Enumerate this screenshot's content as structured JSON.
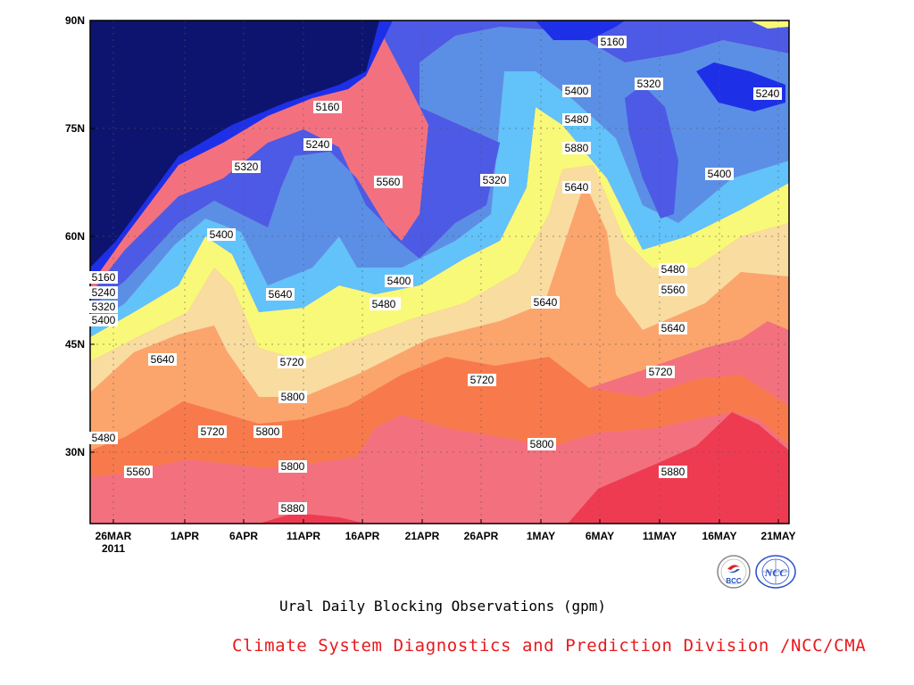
{
  "chart_data": {
    "type": "heatmap",
    "title": "Ural Daily Blocking Observations (gpm)",
    "x_ticks": [
      "26MAR",
      "1APR",
      "6APR",
      "11APR",
      "16APR",
      "21APR",
      "26APR",
      "1MAY",
      "6MAY",
      "11MAY",
      "16MAY",
      "21MAY"
    ],
    "x_year_label": "2011",
    "y_ticks": [
      "90N",
      "75N",
      "60N",
      "45N",
      "30N"
    ],
    "x_range": [
      "2011-03-26",
      "2011-05-21"
    ],
    "y_range": [
      20,
      90
    ],
    "contour_levels": [
      5160,
      5240,
      5320,
      5400,
      5480,
      5560,
      5640,
      5720,
      5800,
      5880
    ],
    "band_colors": [
      "#0c1470",
      "#1e2fe8",
      "#4d5ae6",
      "#5b8fe6",
      "#62c2fa",
      "#f9f979",
      "#f9dca0",
      "#fba56d",
      "#f87a4c",
      "#f3717f",
      "#ef3b52"
    ],
    "contour_labels": [
      "5160",
      "5240",
      "5320",
      "5400",
      "5480",
      "5560",
      "5640",
      "5720",
      "5800",
      "5880",
      "5160",
      "5240",
      "5320",
      "5400",
      "5640",
      "5720",
      "5800",
      "5480",
      "5400",
      "5560",
      "5640",
      "5720",
      "5800",
      "5880",
      "5160",
      "5320",
      "5240",
      "5400",
      "5480",
      "5880",
      "5320",
      "5720",
      "5800",
      "5640",
      "5320",
      "5400",
      "5480",
      "5560",
      "5640",
      "5320",
      "5480",
      "5560",
      "5640",
      "5720",
      "5880",
      "5240",
      "5400"
    ]
  },
  "footer": {
    "caption": "Ural Daily Blocking Observations (gpm)",
    "credit": "Climate System Diagnostics and Prediction Division /NCC/CMA"
  },
  "logos": {
    "left": "BCC",
    "right": "NCC"
  }
}
